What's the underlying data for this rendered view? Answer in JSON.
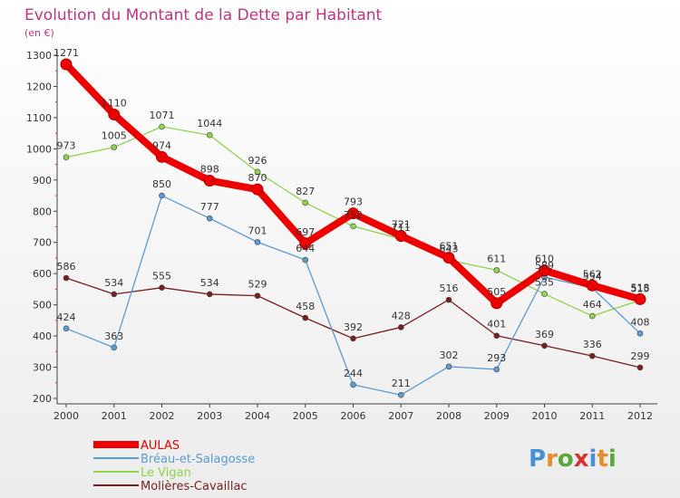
{
  "brand": {
    "logo_text": "Proxiti"
  },
  "chart_data": {
    "type": "line",
    "title": "Evolution du Montant de la Dette par Habitant",
    "subtitle": "(en €)",
    "xlabel": "",
    "ylabel": "",
    "x": [
      "2000",
      "2001",
      "2002",
      "2003",
      "2004",
      "2005",
      "2006",
      "2007",
      "2008",
      "2009",
      "2010",
      "2011",
      "2012"
    ],
    "ylim": [
      200,
      1300
    ],
    "yticks": [
      200,
      300,
      400,
      500,
      600,
      700,
      800,
      900,
      1000,
      1100,
      1200,
      1300
    ],
    "grid": false,
    "legend": "bottom-left",
    "series": [
      {
        "name": "AULAS",
        "color": "#ee0000",
        "values": [
          1271,
          1110,
          974,
          898,
          870,
          697,
          793,
          721,
          651,
          505,
          610,
          562,
          518
        ]
      },
      {
        "name": "Bréau-et-Salagosse",
        "color": "#5b9bd5",
        "values": [
          424,
          363,
          850,
          777,
          701,
          644,
          244,
          211,
          302,
          293,
          589,
          554,
          408
        ]
      },
      {
        "name": "Le Vigan",
        "color": "#8fd44a",
        "values": [
          973,
          1005,
          1071,
          1044,
          926,
          827,
          752,
          711,
          643,
          611,
          535,
          464,
          515
        ]
      },
      {
        "name": "Molières-Cavaillac",
        "color": "#7a1f1f",
        "values": [
          586,
          534,
          555,
          534,
          529,
          458,
          392,
          428,
          516,
          401,
          369,
          336,
          299
        ]
      }
    ]
  }
}
